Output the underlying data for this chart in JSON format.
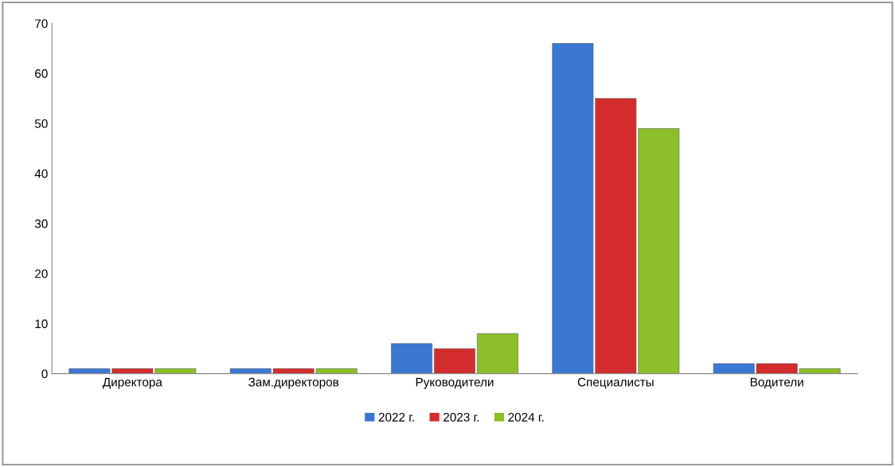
{
  "chart_data": {
    "type": "bar",
    "categories": [
      "Директора",
      "Зам.директоров",
      "Руководители",
      "Специалисты",
      "Водители"
    ],
    "series": [
      {
        "name": "2022 г.",
        "color": "#3a78d4",
        "values": [
          1,
          1,
          6,
          66,
          2
        ]
      },
      {
        "name": "2023 г.",
        "color": "#d42c2c",
        "values": [
          1,
          1,
          5,
          55,
          2
        ]
      },
      {
        "name": "2024 г.",
        "color": "#8cbf2a",
        "values": [
          1,
          1,
          8,
          49,
          1
        ]
      }
    ],
    "ylim": [
      0,
      70
    ],
    "yticks": [
      0,
      10,
      20,
      30,
      40,
      50,
      60,
      70
    ],
    "grid": false,
    "legend": "bottom"
  }
}
